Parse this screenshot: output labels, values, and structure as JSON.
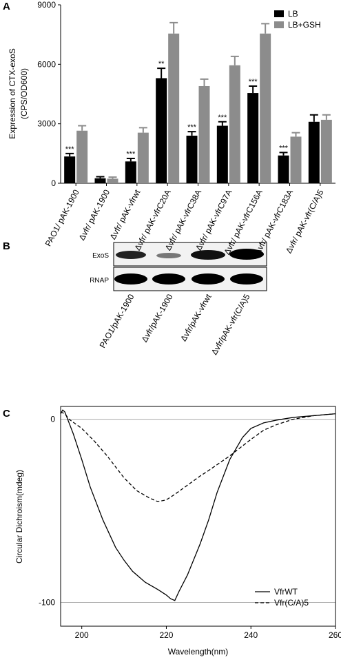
{
  "chart_data": [
    {
      "type": "bar",
      "panel_label": "A",
      "y_label": [
        "Expression of CTX-exoS",
        "(CPS/OD600)"
      ],
      "categories": [
        "PAO1/ pAK-1900",
        "Δvfr/ pAK-1900",
        "Δvfr/ pAK-vfrwt",
        "Δvfr/ pAK-vfrC20A",
        "Δvfr/ pAK-vfrC38A",
        "Δvfr/ pAK-vfrC97A",
        "Δvfr/ pAK-vfrC156A",
        "Δvfr/ pAK-vfrC183A",
        "Δvfr/ pAK-vfr(C/A)5"
      ],
      "series": [
        {
          "name": "LB",
          "color": "#000000",
          "values": [
            1350,
            250,
            1100,
            5300,
            2400,
            2900,
            4550,
            1400,
            3100
          ],
          "errors": [
            150,
            80,
            150,
            500,
            200,
            200,
            350,
            150,
            350
          ]
        },
        {
          "name": "LB+GSH",
          "color": "#8c8c8c",
          "values": [
            2650,
            230,
            2550,
            7550,
            4900,
            5950,
            7550,
            2350,
            3200
          ],
          "errors": [
            250,
            80,
            250,
            550,
            350,
            450,
            500,
            200,
            250
          ]
        }
      ],
      "annotations": [
        "***",
        null,
        "***",
        "**",
        "***",
        "***",
        "***",
        "***",
        null
      ],
      "ylim": [
        0,
        9000
      ],
      "yticks": [
        0,
        3000,
        6000,
        9000
      ],
      "legend": "top-right"
    },
    {
      "type": "line",
      "panel_label": "C",
      "x_label": "Wavelength(nm)",
      "y_label": "Circular Dichroism(mdeg)",
      "series": [
        {
          "name": "VfrWT",
          "color": "#000000",
          "dash": false,
          "x": [
            195,
            195.5,
            196,
            197,
            198,
            200,
            202,
            205,
            208,
            210,
            212,
            215,
            218,
            220,
            221,
            222,
            223,
            225,
            228,
            230,
            232,
            235,
            238,
            240,
            243,
            246,
            250,
            255,
            260
          ],
          "values": [
            3,
            5,
            4,
            -2,
            -8,
            -22,
            -37,
            -55,
            -70,
            -77,
            -83,
            -89,
            -93,
            -96,
            -98,
            -99,
            -94,
            -85,
            -68,
            -55,
            -40,
            -22,
            -10,
            -5,
            -2,
            -0.5,
            1,
            2,
            3
          ]
        },
        {
          "name": "Vfr(C/A)5",
          "color": "#000000",
          "dash": true,
          "x": [
            195,
            196,
            197,
            200,
            203,
            206,
            210,
            213,
            216,
            218,
            220,
            222,
            225,
            228,
            230,
            235,
            240,
            243,
            246,
            250,
            255,
            260
          ],
          "values": [
            4,
            3,
            0,
            -5,
            -12,
            -20,
            -32,
            -39,
            -43,
            -45,
            -44,
            -41,
            -36,
            -31,
            -28,
            -20,
            -11,
            -6,
            -3,
            0,
            2,
            3
          ]
        }
      ],
      "xlim": [
        195,
        260
      ],
      "xticks": [
        200,
        220,
        240,
        260
      ],
      "ylim": [
        -113,
        7
      ],
      "yticks": [
        -100,
        0
      ],
      "grid": true,
      "legend": "bottom-right"
    }
  ],
  "blot": {
    "panel_label": "B",
    "rows": [
      "ExoS",
      "RNAP"
    ],
    "lanes": [
      "PAO1/pAK-1900",
      "Δvfr/pAK-1900",
      "Δvfr/pAK-vfrwt",
      "Δvfr/pAK-vfr(C/A)5"
    ]
  }
}
